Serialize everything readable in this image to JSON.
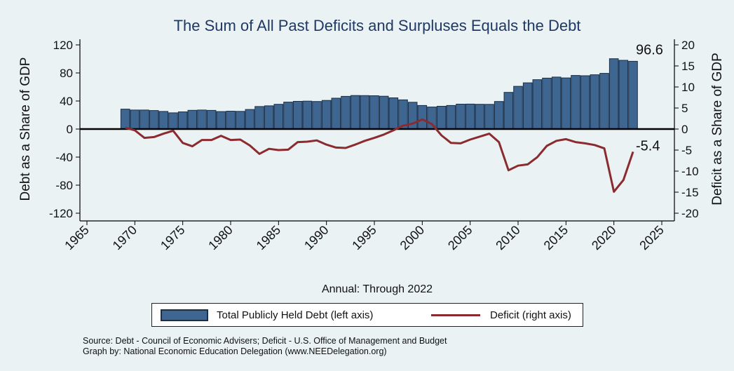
{
  "chart_data": {
    "type": "bar",
    "title": "The Sum of All Past Deficits and Surpluses Equals the Debt",
    "xlabel": "Annual: Through 2022",
    "ylabel_left": "Debt as a Share of GDP",
    "ylabel_right": "Deficit as a Share of GDP",
    "xlim": [
      1965,
      2025
    ],
    "ylim_left": [
      -120,
      120
    ],
    "ylim_right": [
      -20,
      20
    ],
    "x_ticks": [
      "1965",
      "1970",
      "1975",
      "1980",
      "1985",
      "1990",
      "1995",
      "2000",
      "2005",
      "2010",
      "2015",
      "2020",
      "2025"
    ],
    "y_ticks_left": [
      "120",
      "80",
      "40",
      "0",
      "-40",
      "-80",
      "-120"
    ],
    "y_ticks_right": [
      "20",
      "15",
      "10",
      "5",
      "0",
      "-5",
      "-10",
      "-15",
      "-20"
    ],
    "grid": false,
    "legend_position": "bottom",
    "years": [
      1969,
      1970,
      1971,
      1972,
      1973,
      1974,
      1975,
      1976,
      1977,
      1978,
      1979,
      1980,
      1981,
      1982,
      1983,
      1984,
      1985,
      1986,
      1987,
      1988,
      1989,
      1990,
      1991,
      1992,
      1993,
      1994,
      1995,
      1996,
      1997,
      1998,
      1999,
      2000,
      2001,
      2002,
      2003,
      2004,
      2005,
      2006,
      2007,
      2008,
      2009,
      2010,
      2011,
      2012,
      2013,
      2014,
      2015,
      2016,
      2017,
      2018,
      2019,
      2020,
      2021,
      2022
    ],
    "series": [
      {
        "name": "Total Publicly Held Debt (left axis)",
        "axis": "left",
        "type": "bar",
        "color": "#3f6690",
        "values": [
          28.4,
          27.1,
          27.1,
          26.4,
          25.1,
          23.1,
          24.5,
          26.7,
          27.1,
          26.6,
          24.9,
          25.5,
          25.2,
          27.9,
          32.1,
          33.1,
          35.3,
          38.4,
          39.5,
          39.8,
          39.3,
          40.8,
          44.0,
          46.6,
          47.8,
          47.7,
          47.5,
          46.8,
          44.5,
          41.6,
          38.2,
          33.6,
          31.4,
          32.5,
          33.6,
          35.5,
          35.6,
          35.3,
          35.2,
          39.3,
          52.3,
          60.9,
          65.9,
          70.4,
          72.6,
          74.1,
          72.9,
          76.4,
          76.0,
          77.4,
          79.4,
          100.3,
          98.0,
          96.6
        ]
      },
      {
        "name": "Deficit (right axis)",
        "axis": "right",
        "type": "line",
        "color": "#8b2b2f",
        "values": [
          0.3,
          -0.3,
          -2.1,
          -1.9,
          -1.1,
          -0.4,
          -3.3,
          -4.1,
          -2.6,
          -2.6,
          -1.6,
          -2.6,
          -2.5,
          -3.9,
          -5.9,
          -4.7,
          -5.0,
          -4.9,
          -3.1,
          -3.0,
          -2.7,
          -3.7,
          -4.4,
          -4.5,
          -3.7,
          -2.8,
          -2.1,
          -1.3,
          -0.3,
          0.8,
          1.3,
          2.3,
          1.2,
          -1.5,
          -3.3,
          -3.4,
          -2.5,
          -1.8,
          -1.1,
          -3.1,
          -9.8,
          -8.7,
          -8.4,
          -6.7,
          -4.0,
          -2.8,
          -2.4,
          -3.1,
          -3.4,
          -3.8,
          -4.6,
          -14.9,
          -12.1,
          -5.4
        ]
      }
    ],
    "annotations": [
      {
        "text": "96.6",
        "x": 2022,
        "y": 96.6,
        "axis": "left"
      },
      {
        "text": "-5.4",
        "x": 2022,
        "y": -5.4,
        "axis": "right"
      }
    ]
  },
  "legend": {
    "bar_label": "Total Publicly Held Debt (left axis)",
    "line_label": "Deficit (right axis)"
  },
  "source_lines": {
    "line1": "Source: Debt - Council of Economic Advisers; Deficit - U.S. Office of Management and Budget",
    "line2": "Graph by: National Economic Education Delegation (www.NEEDelegation.org)"
  },
  "colors": {
    "background": "#eaf2f3",
    "bar_fill": "#3f6690",
    "bar_edge": "#1a2f4a",
    "line": "#8b2b2f",
    "title": "#1f3864"
  }
}
